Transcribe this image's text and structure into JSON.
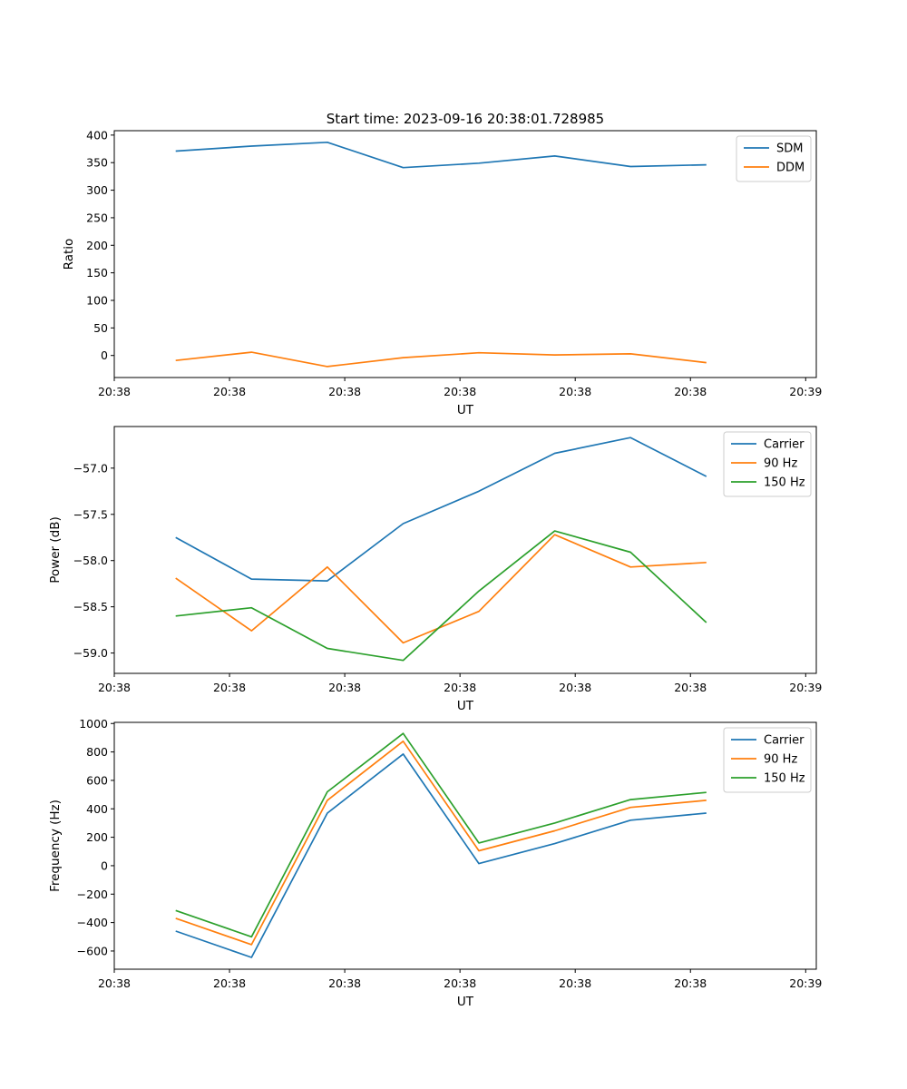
{
  "figure_title": "Start time: 2023-09-16 20:38:01.728985",
  "colors": {
    "blue": "#1f77b4",
    "orange": "#ff7f0e",
    "green": "#2ca02c"
  },
  "chart_data": [
    {
      "type": "line",
      "title": "Start time: 2023-09-16 20:38:01.728985",
      "xlabel": "UT",
      "ylabel": "Ratio",
      "x": [
        1,
        2,
        3,
        4,
        5,
        6,
        7,
        8
      ],
      "xlim": [
        0.19,
        9.45
      ],
      "x_ticks": [
        0.19,
        1.71,
        3.23,
        4.75,
        6.27,
        7.79,
        9.31
      ],
      "x_tick_labels": [
        "20:38",
        "20:38",
        "20:38",
        "20:38",
        "20:38",
        "20:38",
        "20:39"
      ],
      "ylim": [
        -40,
        408
      ],
      "y_ticks": [
        0,
        50,
        100,
        150,
        200,
        250,
        300,
        350,
        400
      ],
      "y_tick_labels": [
        "0",
        "50",
        "100",
        "150",
        "200",
        "250",
        "300",
        "350",
        "400"
      ],
      "legend_position": "top-right",
      "series": [
        {
          "name": "SDM",
          "color": "#1f77b4",
          "values": [
            371,
            380,
            387,
            341,
            349,
            362,
            343,
            346
          ]
        },
        {
          "name": "DDM",
          "color": "#ff7f0e",
          "values": [
            -9,
            6,
            -20,
            -4,
            5,
            1,
            3,
            -13
          ]
        }
      ]
    },
    {
      "type": "line",
      "title": "",
      "xlabel": "UT",
      "ylabel": "Power (dB)",
      "x": [
        1,
        2,
        3,
        4,
        5,
        6,
        7,
        8
      ],
      "xlim": [
        0.19,
        9.45
      ],
      "x_ticks": [
        0.19,
        1.71,
        3.23,
        4.75,
        6.27,
        7.79,
        9.31
      ],
      "x_tick_labels": [
        "20:38",
        "20:38",
        "20:38",
        "20:38",
        "20:38",
        "20:38",
        "20:39"
      ],
      "ylim": [
        -59.22,
        -56.55
      ],
      "y_ticks": [
        -59.0,
        -58.5,
        -58.0,
        -57.5,
        -57.0
      ],
      "y_tick_labels": [
        "−59.0",
        "−58.5",
        "−58.0",
        "−57.5",
        "−57.0"
      ],
      "legend_position": "top-right",
      "series": [
        {
          "name": "Carrier",
          "color": "#1f77b4",
          "values": [
            -57.75,
            -58.2,
            -58.22,
            -57.6,
            -57.25,
            -56.84,
            -56.67,
            -57.09
          ]
        },
        {
          "name": "90 Hz",
          "color": "#ff7f0e",
          "values": [
            -58.19,
            -58.76,
            -58.07,
            -58.89,
            -58.55,
            -57.72,
            -58.07,
            -58.02
          ]
        },
        {
          "name": "150 Hz",
          "color": "#2ca02c",
          "values": [
            -58.6,
            -58.51,
            -58.95,
            -59.08,
            -58.33,
            -57.68,
            -57.91,
            -58.67
          ]
        }
      ]
    },
    {
      "type": "line",
      "title": "",
      "xlabel": "UT",
      "ylabel": "Frequency (Hz)",
      "x": [
        1,
        2,
        3,
        4,
        5,
        6,
        7,
        8
      ],
      "xlim": [
        0.19,
        9.45
      ],
      "x_ticks": [
        0.19,
        1.71,
        3.23,
        4.75,
        6.27,
        7.79,
        9.31
      ],
      "x_tick_labels": [
        "20:38",
        "20:38",
        "20:38",
        "20:38",
        "20:38",
        "20:38",
        "20:39"
      ],
      "ylim": [
        -728,
        1008
      ],
      "y_ticks": [
        -600,
        -400,
        -200,
        0,
        200,
        400,
        600,
        800,
        1000
      ],
      "y_tick_labels": [
        "−600",
        "−400",
        "−200",
        "0",
        "200",
        "400",
        "600",
        "800",
        "1000"
      ],
      "legend_position": "top-right",
      "series": [
        {
          "name": "Carrier",
          "color": "#1f77b4",
          "values": [
            -460,
            -645,
            370,
            785,
            15,
            155,
            320,
            370
          ]
        },
        {
          "name": "90 Hz",
          "color": "#ff7f0e",
          "values": [
            -370,
            -555,
            460,
            875,
            105,
            245,
            410,
            460
          ]
        },
        {
          "name": "150 Hz",
          "color": "#2ca02c",
          "values": [
            -315,
            -500,
            520,
            930,
            160,
            300,
            465,
            515
          ]
        }
      ]
    }
  ]
}
